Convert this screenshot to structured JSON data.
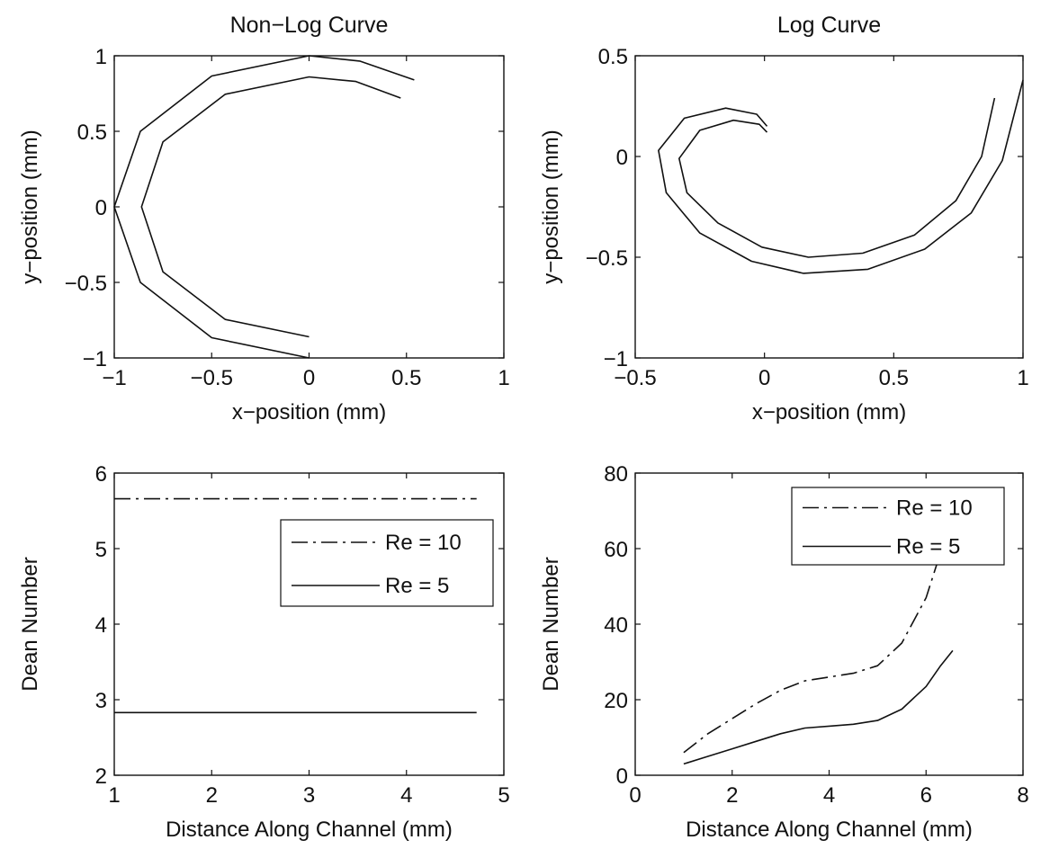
{
  "chart_data": [
    {
      "type": "line",
      "title": "Non−Log Curve",
      "xlabel": "x−position (mm)",
      "ylabel": "y−position (mm)",
      "xlim": [
        -1,
        1
      ],
      "ylim": [
        -1,
        1
      ],
      "xticks": [
        -1,
        -0.5,
        0,
        0.5,
        1
      ],
      "yticks": [
        -1,
        -0.5,
        0,
        0.5,
        1
      ],
      "xtick_labels": [
        "−1",
        "−0.5",
        "0",
        "0.5",
        "1"
      ],
      "ytick_labels": [
        "−1",
        "−0.5",
        "0",
        "0.5",
        "1"
      ],
      "grid": false,
      "series": [
        {
          "style": "solid",
          "x": [
            0,
            -0.5,
            -0.866,
            -1.0,
            -0.866,
            -0.5,
            0,
            0.26,
            0.54
          ],
          "y": [
            -1.0,
            -0.866,
            -0.5,
            0,
            0.5,
            0.866,
            1.0,
            0.965,
            0.84
          ]
        },
        {
          "style": "solid",
          "x": [
            0,
            -0.43,
            -0.75,
            -0.86,
            -0.75,
            -0.43,
            0,
            0.24,
            0.47
          ],
          "y": [
            -0.86,
            -0.745,
            -0.43,
            0,
            0.43,
            0.745,
            0.86,
            0.83,
            0.72
          ]
        }
      ]
    },
    {
      "type": "line",
      "title": "Log Curve",
      "xlabel": "x−position (mm)",
      "ylabel": "y−position (mm)",
      "xlim": [
        -0.5,
        1
      ],
      "ylim": [
        -1,
        0.5
      ],
      "xticks": [
        -0.5,
        0,
        0.5,
        1
      ],
      "yticks": [
        -1,
        -0.5,
        0,
        0.5
      ],
      "xtick_labels": [
        "−0.5",
        "0",
        "0.5",
        "1"
      ],
      "ytick_labels": [
        "−1",
        "−0.5",
        "0",
        "0.5"
      ],
      "grid": false,
      "series": [
        {
          "style": "solid",
          "x": [
            0.01,
            -0.03,
            -0.15,
            -0.31,
            -0.41,
            -0.38,
            -0.25,
            -0.05,
            0.15,
            0.4,
            0.62,
            0.8,
            0.92,
            1.0
          ],
          "y": [
            0.15,
            0.21,
            0.24,
            0.19,
            0.03,
            -0.18,
            -0.38,
            -0.52,
            -0.58,
            -0.56,
            -0.46,
            -0.28,
            -0.02,
            0.38
          ]
        },
        {
          "style": "solid",
          "x": [
            0.01,
            -0.02,
            -0.12,
            -0.25,
            -0.33,
            -0.3,
            -0.18,
            -0.01,
            0.17,
            0.38,
            0.58,
            0.74,
            0.84,
            0.89
          ],
          "y": [
            0.12,
            0.16,
            0.18,
            0.13,
            -0.01,
            -0.18,
            -0.33,
            -0.45,
            -0.5,
            -0.48,
            -0.39,
            -0.22,
            0.0,
            0.29
          ]
        }
      ]
    },
    {
      "type": "line",
      "title": "",
      "xlabel": "Distance Along Channel (mm)",
      "ylabel": "Dean Number",
      "xlim": [
        1,
        5
      ],
      "ylim": [
        2,
        6
      ],
      "xticks": [
        1,
        2,
        3,
        4,
        5
      ],
      "yticks": [
        2,
        3,
        4,
        5,
        6
      ],
      "xtick_labels": [
        "1",
        "2",
        "3",
        "4",
        "5"
      ],
      "ytick_labels": [
        "2",
        "3",
        "4",
        "5",
        "6"
      ],
      "grid": false,
      "legend": "top-right",
      "series": [
        {
          "name": "Re = 10",
          "style": "dashdot",
          "x": [
            1,
            4.72
          ],
          "y": [
            5.66,
            5.66
          ]
        },
        {
          "name": "Re = 5",
          "style": "solid",
          "x": [
            1,
            4.72
          ],
          "y": [
            2.83,
            2.83
          ]
        }
      ]
    },
    {
      "type": "line",
      "title": "",
      "xlabel": "Distance Along Channel (mm)",
      "ylabel": "Dean Number",
      "xlim": [
        0,
        8
      ],
      "ylim": [
        0,
        80
      ],
      "xticks": [
        0,
        2,
        4,
        6,
        8
      ],
      "yticks": [
        0,
        20,
        40,
        60,
        80
      ],
      "xtick_labels": [
        "0",
        "2",
        "4",
        "6",
        "8"
      ],
      "ytick_labels": [
        "0",
        "20",
        "40",
        "60",
        "80"
      ],
      "grid": false,
      "legend": "top-right",
      "series": [
        {
          "name": "Re = 10",
          "style": "dashdot",
          "x": [
            1.0,
            1.5,
            2.0,
            2.5,
            3.0,
            3.5,
            4.0,
            4.5,
            5.0,
            5.5,
            6.0,
            6.3
          ],
          "y": [
            6,
            11,
            15,
            19,
            22.5,
            25,
            26,
            27,
            29,
            35,
            47,
            59
          ]
        },
        {
          "name": "Re = 5",
          "style": "solid",
          "x": [
            1.0,
            1.5,
            2.0,
            2.5,
            3.0,
            3.5,
            4.0,
            4.5,
            5.0,
            5.5,
            6.0,
            6.3,
            6.55
          ],
          "y": [
            3,
            5,
            7,
            9,
            11,
            12.5,
            13,
            13.5,
            14.5,
            17.5,
            23.5,
            29,
            33
          ]
        }
      ]
    }
  ]
}
